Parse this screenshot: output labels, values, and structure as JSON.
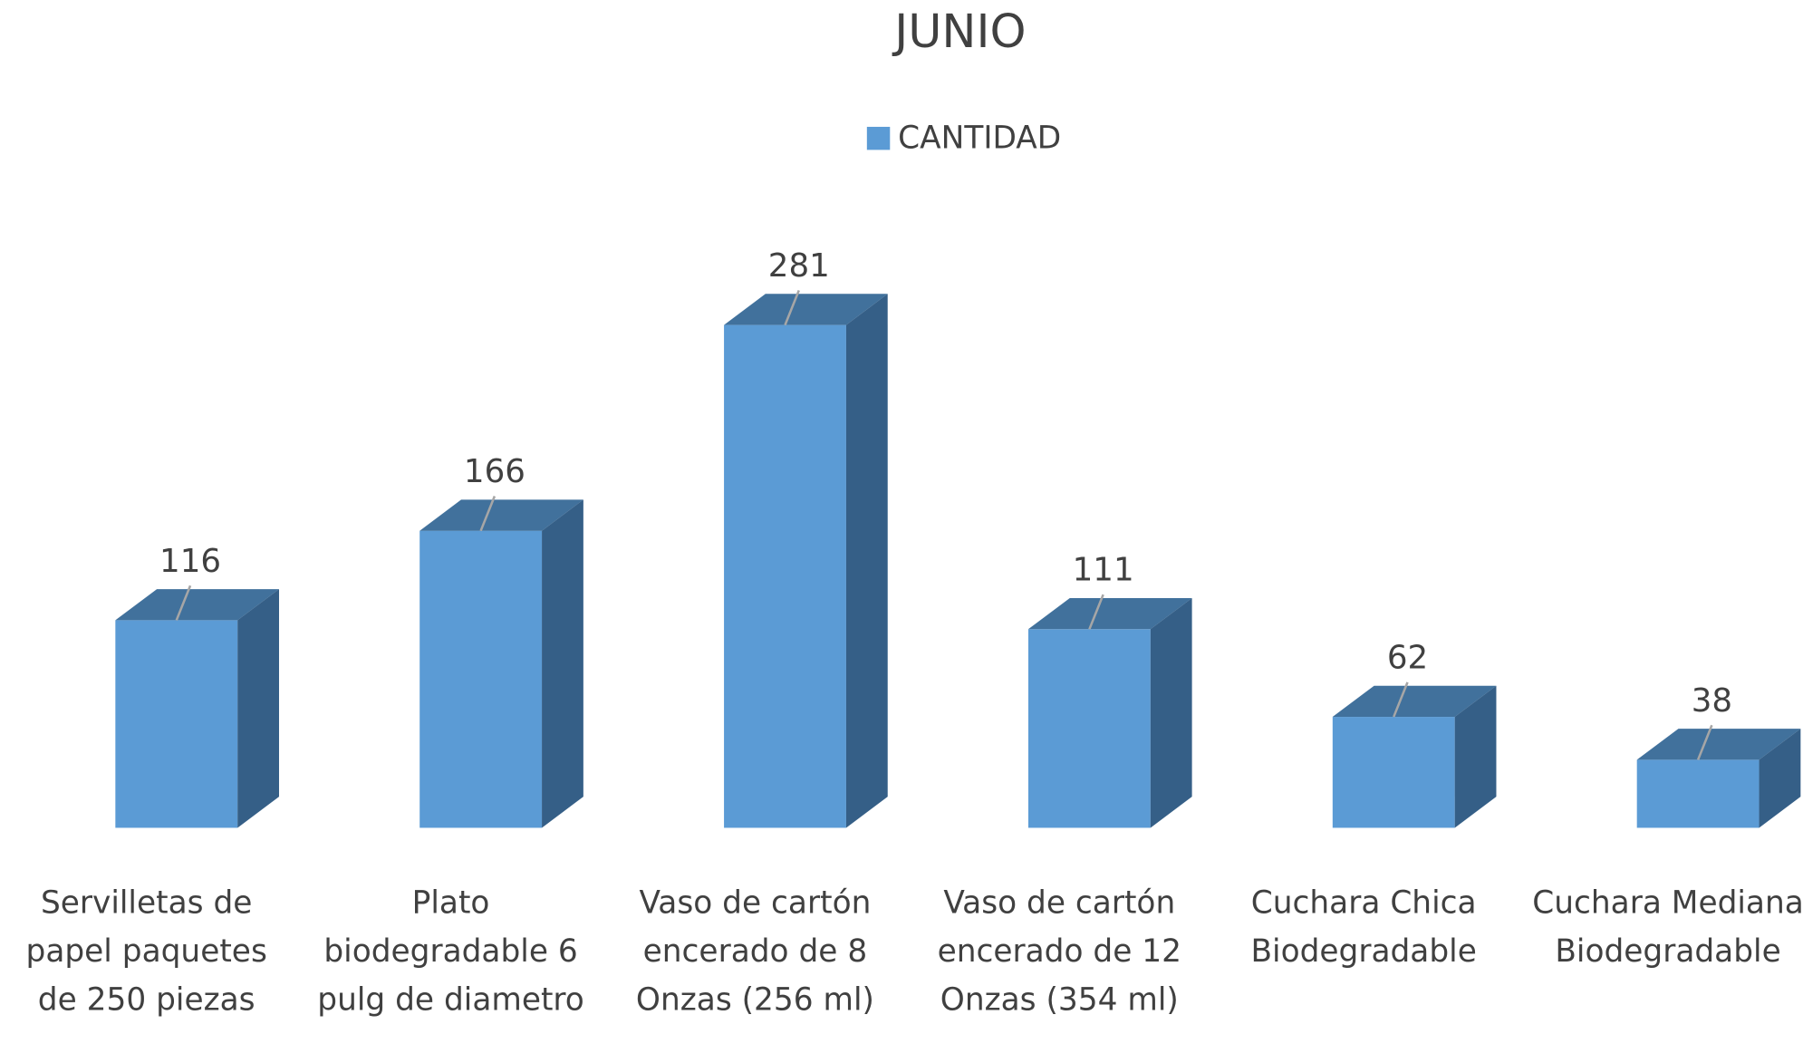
{
  "chart_data": {
    "type": "bar3d",
    "title": "JUNIO",
    "categories": [
      "Servilletas de papel paquetes de 250 piezas",
      "Plato biodegradable 6 pulg de diametro",
      "Vaso de cartón encerado de 8 Onzas (256 ml)",
      "Vaso de cartón encerado de 12 Onzas (354 ml)",
      "Cuchara Chica Biodegradable",
      "Cuchara Mediana Biodegradable"
    ],
    "series": [
      {
        "name": "CANTIDAD",
        "color": "#5b9bd5",
        "values": [
          116,
          166,
          281,
          111,
          62,
          38
        ]
      }
    ],
    "legend": "top"
  }
}
